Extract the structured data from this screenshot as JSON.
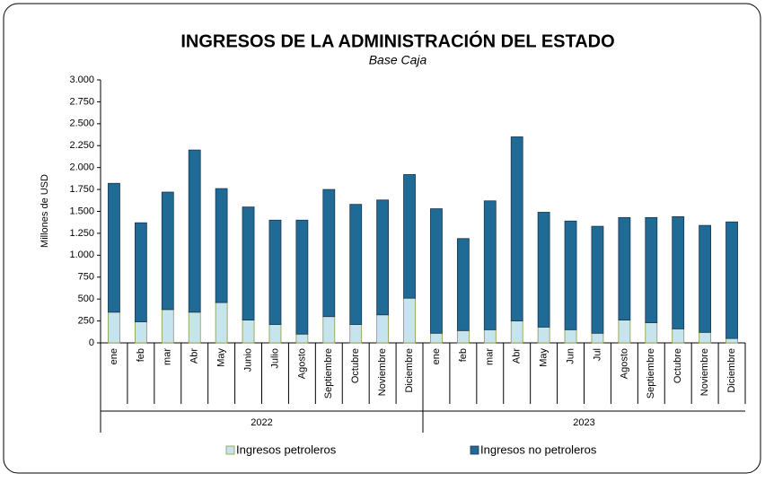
{
  "chart_data": {
    "type": "stacked-bar",
    "title": "INGRESOS DE LA ADMINISTRACIÓN DEL ESTADO",
    "subtitle": "Base Caja",
    "y_label": "Millones de USD",
    "categories": [
      "ene",
      "feb",
      "mar",
      "Abr",
      "May",
      "Junio",
      "Julio",
      "Agosto",
      "Septiembre",
      "Octubre",
      "Noviembre",
      "Diciembre",
      "ene",
      "feb",
      "mar",
      "Abr",
      "May",
      "Jun",
      "Jul",
      "Agosto",
      "Septiembre",
      "Octubre",
      "Noviembre",
      "Diciembre"
    ],
    "groups": [
      "2022",
      "2023"
    ],
    "series": [
      {
        "name": "Ingresos petroleros",
        "color": "#c6e4ee",
        "values": [
          350,
          240,
          380,
          350,
          460,
          260,
          210,
          100,
          300,
          210,
          320,
          510,
          110,
          140,
          150,
          250,
          180,
          150,
          110,
          260,
          230,
          160,
          120,
          50
        ]
      },
      {
        "name": "Ingresos no petroleros",
        "color": "#1f6b96",
        "values": [
          1470,
          1130,
          1340,
          1850,
          1300,
          1290,
          1190,
          1300,
          1450,
          1370,
          1310,
          1410,
          1420,
          1050,
          1470,
          2100,
          1310,
          1240,
          1220,
          1170,
          1200,
          1280,
          1220,
          1330
        ]
      }
    ],
    "ylim": [
      0,
      3000
    ],
    "yticks": [
      0,
      250,
      500,
      750,
      {
        "value": 1000,
        "label": "1.000"
      },
      {
        "value": 1250,
        "label": "1.250"
      },
      {
        "value": 1500,
        "label": "1.500"
      },
      {
        "value": 1750,
        "label": "1.750"
      },
      {
        "value": 2000,
        "label": "2.000"
      },
      {
        "value": 2250,
        "label": "2.250"
      },
      {
        "value": 2500,
        "label": "2.500"
      },
      {
        "value": 2750,
        "label": "2.750"
      },
      {
        "value": 3000,
        "label": "3.000"
      }
    ],
    "legend": "bottom"
  }
}
